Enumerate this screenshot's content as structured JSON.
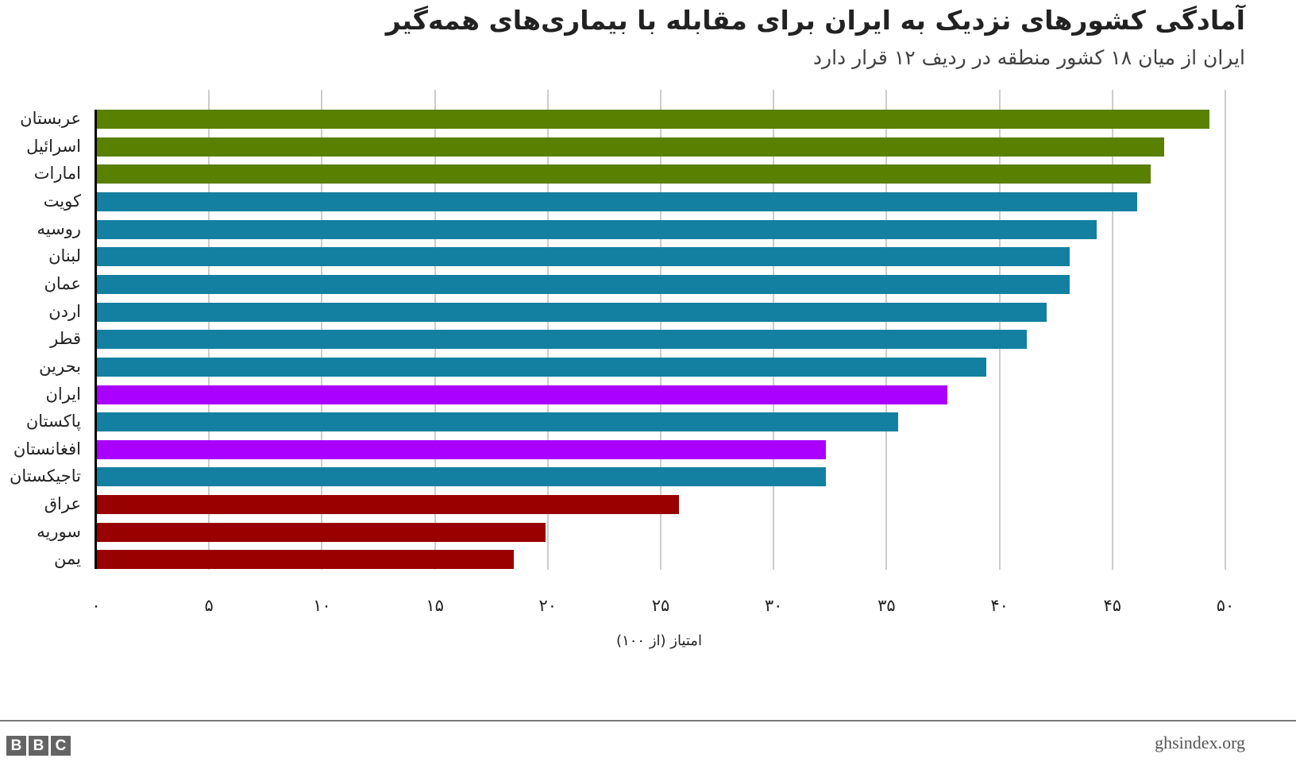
{
  "header": {
    "title": "آمادگی کشورهای نزدیک به ایران برای مقابله با بیماری‌های همه‌گیر",
    "subtitle": "ایران از میان ۱۸ کشور منطقه در ردیف ۱۲ قرار دارد"
  },
  "footer": {
    "brand": [
      "B",
      "B",
      "C"
    ],
    "source": "ghsindex.org"
  },
  "colors": {
    "green": "#5a8000",
    "teal": "#1380a1",
    "purple": "#aa00ff",
    "red": "#990000",
    "grid": "#cccccc"
  },
  "chart_data": {
    "type": "bar",
    "orientation": "horizontal",
    "title": "آمادگی کشورهای نزدیک به ایران برای مقابله با بیماری‌های همه‌گیر",
    "subtitle": "ایران از میان ۱۸ کشور منطقه در ردیف ۱۲ قرار دارد",
    "xlabel": "امتیاز (از ۱۰۰)",
    "ylabel": "",
    "xlim": [
      0,
      50
    ],
    "grid": true,
    "legend": null,
    "xticks": [
      0,
      5,
      10,
      15,
      20,
      25,
      30,
      35,
      40,
      45,
      50
    ],
    "xtick_labels": [
      "۰",
      "۵",
      "۱۰",
      "۱۵",
      "۲۰",
      "۲۵",
      "۳۰",
      "۳۵",
      "۴۰",
      "۴۵",
      "۵۰"
    ],
    "categories": [
      "عربستان",
      "اسرائیل",
      "امارات",
      "کویت",
      "روسیه",
      "لبنان",
      "عمان",
      "اردن",
      "قطر",
      "بحرین",
      "ایران",
      "پاکستان",
      "افغانستان",
      "تاجیکستان",
      "عراق",
      "سوریه",
      "یمن"
    ],
    "values": [
      49.3,
      47.3,
      46.7,
      46.1,
      44.3,
      43.1,
      43.1,
      42.1,
      41.2,
      39.4,
      37.7,
      35.5,
      32.3,
      32.3,
      25.8,
      19.9,
      18.5
    ],
    "bar_colors": [
      "green",
      "green",
      "green",
      "teal",
      "teal",
      "teal",
      "teal",
      "teal",
      "teal",
      "teal",
      "purple",
      "teal",
      "purple",
      "teal",
      "red",
      "red",
      "red"
    ]
  }
}
